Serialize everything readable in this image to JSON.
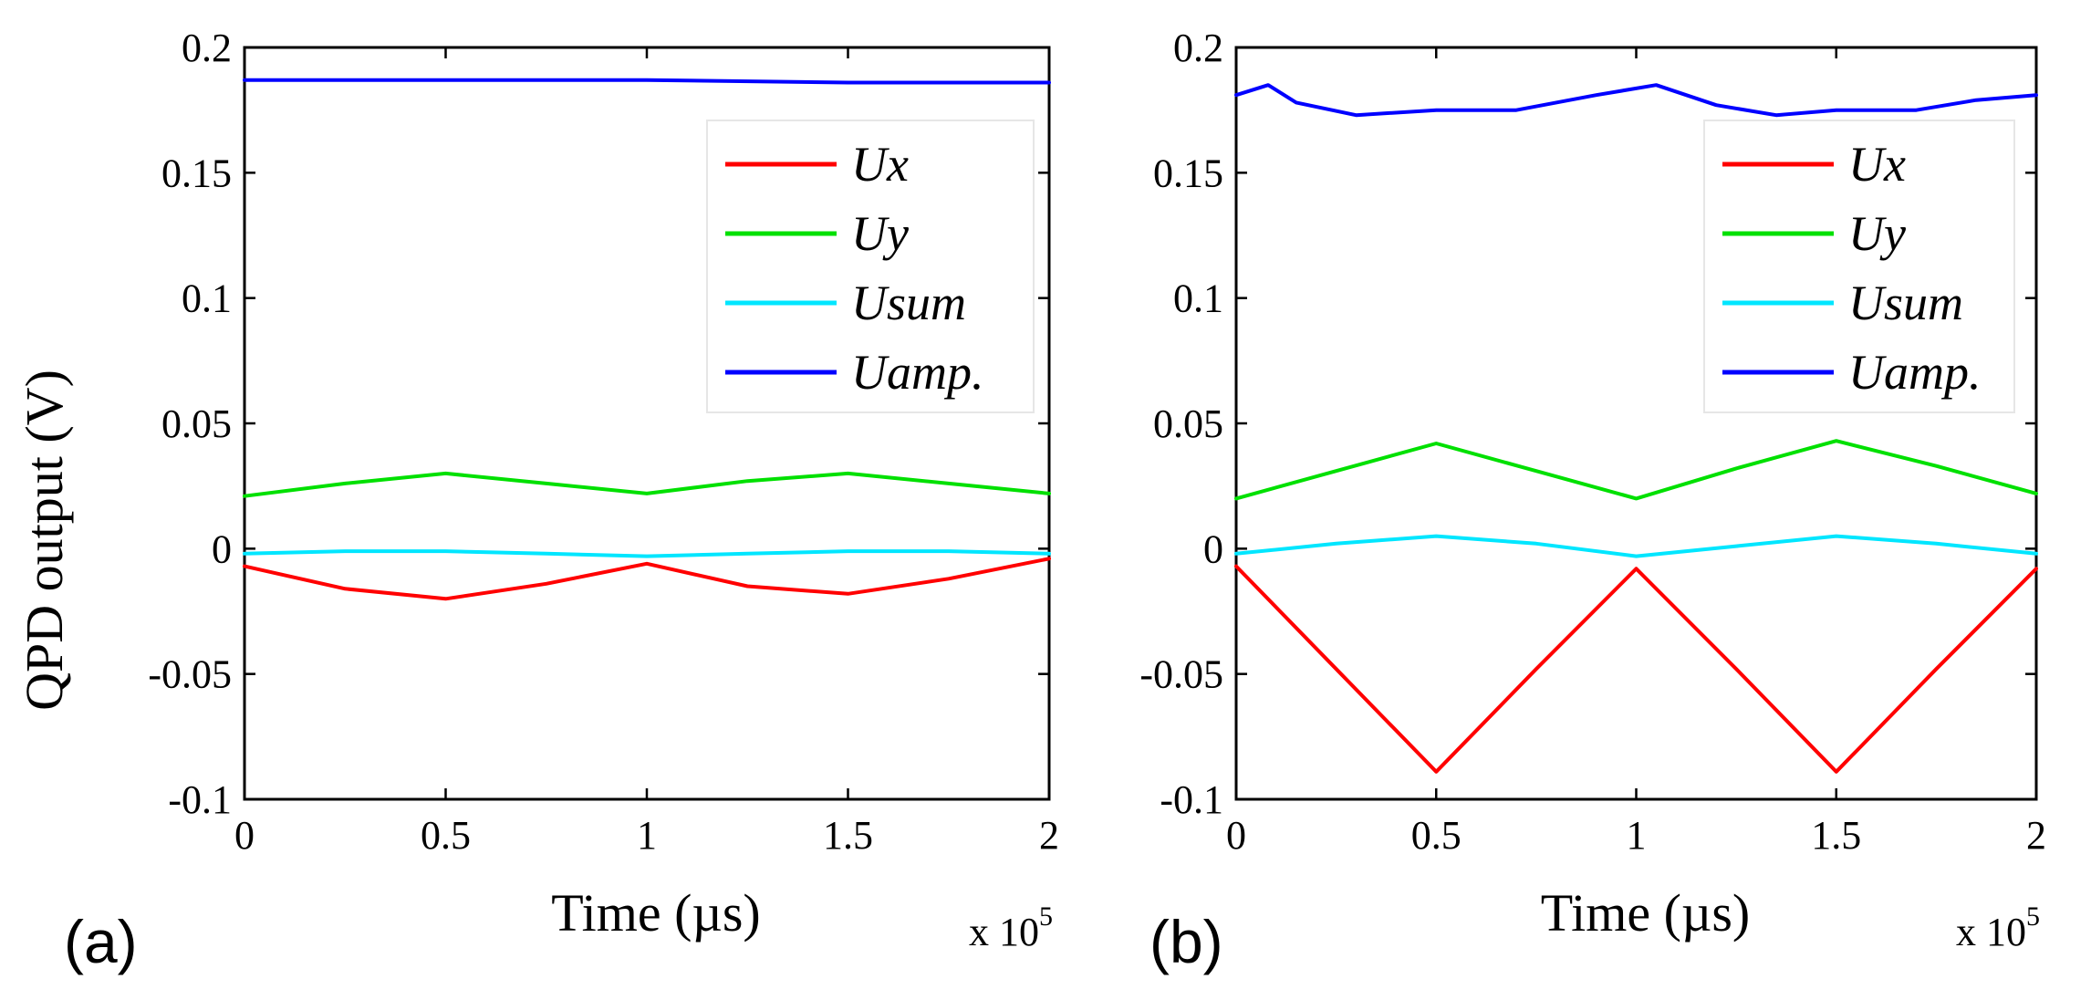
{
  "figure": {
    "ylabel": "QPD output (V)",
    "xlabel": "Time (µs)",
    "x_exponent_prefix": "x 10",
    "x_exponent_power": "5"
  },
  "chart_data": [
    {
      "type": "line",
      "panel_label": "(a)",
      "xlabel": "Time (µs)",
      "ylabel": "QPD output (V)",
      "x_multiplier": "x 10^5",
      "xlim": [
        0,
        2
      ],
      "ylim": [
        -0.1,
        0.2
      ],
      "x_ticks": [
        0,
        0.5,
        1,
        1.5,
        2
      ],
      "x_tick_labels": [
        "0",
        "0.5",
        "1",
        "1.5",
        "2"
      ],
      "y_ticks": [
        -0.1,
        -0.05,
        0,
        0.05,
        0.1,
        0.15,
        0.2
      ],
      "y_tick_labels": [
        "-0.1",
        "-0.05",
        "0",
        "0.05",
        "0.1",
        "0.15",
        "0.2"
      ],
      "legend_position": "top-right",
      "series": [
        {
          "name": "Ux",
          "color": "#ff0000",
          "x": [
            0,
            0.25,
            0.5,
            0.75,
            1,
            1.25,
            1.5,
            1.75,
            2
          ],
          "y": [
            -0.007,
            -0.016,
            -0.02,
            -0.014,
            -0.006,
            -0.015,
            -0.018,
            -0.012,
            -0.004
          ]
        },
        {
          "name": "Uy",
          "color": "#00e000",
          "x": [
            0,
            0.25,
            0.5,
            0.75,
            1,
            1.25,
            1.5,
            1.75,
            2
          ],
          "y": [
            0.021,
            0.026,
            0.03,
            0.026,
            0.022,
            0.027,
            0.03,
            0.026,
            0.022
          ]
        },
        {
          "name": "Usum",
          "color": "#00e6ff",
          "x": [
            0,
            0.25,
            0.5,
            0.75,
            1,
            1.25,
            1.5,
            1.75,
            2
          ],
          "y": [
            -0.002,
            -0.001,
            -0.001,
            -0.002,
            -0.003,
            -0.002,
            -0.001,
            -0.001,
            -0.002
          ]
        },
        {
          "name": "Uamp.",
          "color": "#0000ff",
          "x": [
            0,
            0.5,
            1,
            1.5,
            2
          ],
          "y": [
            0.187,
            0.187,
            0.187,
            0.186,
            0.186
          ]
        }
      ]
    },
    {
      "type": "line",
      "panel_label": "(b)",
      "xlabel": "Time (µs)",
      "ylabel": "",
      "x_multiplier": "x 10^5",
      "xlim": [
        0,
        2
      ],
      "ylim": [
        -0.1,
        0.2
      ],
      "x_ticks": [
        0,
        0.5,
        1,
        1.5,
        2
      ],
      "x_tick_labels": [
        "0",
        "0.5",
        "1",
        "1.5",
        "2"
      ],
      "y_ticks": [
        -0.1,
        -0.05,
        0,
        0.05,
        0.1,
        0.15,
        0.2
      ],
      "y_tick_labels": [
        "-0.1",
        "-0.05",
        "0",
        "0.05",
        "0.1",
        "0.15",
        "0.2"
      ],
      "legend_position": "top-right",
      "series": [
        {
          "name": "Ux",
          "color": "#ff0000",
          "x": [
            0,
            0.25,
            0.5,
            0.75,
            1,
            1.25,
            1.5,
            1.75,
            2
          ],
          "y": [
            -0.007,
            -0.048,
            -0.089,
            -0.048,
            -0.008,
            -0.048,
            -0.089,
            -0.048,
            -0.008
          ]
        },
        {
          "name": "Uy",
          "color": "#00e000",
          "x": [
            0,
            0.25,
            0.5,
            0.75,
            1,
            1.25,
            1.5,
            1.75,
            2
          ],
          "y": [
            0.02,
            0.031,
            0.042,
            0.031,
            0.02,
            0.032,
            0.043,
            0.033,
            0.022
          ]
        },
        {
          "name": "Usum",
          "color": "#00e6ff",
          "x": [
            0,
            0.25,
            0.5,
            0.75,
            1,
            1.25,
            1.5,
            1.75,
            2
          ],
          "y": [
            -0.002,
            0.002,
            0.005,
            0.002,
            -0.003,
            0.001,
            0.005,
            0.002,
            -0.002
          ]
        },
        {
          "name": "Uamp.",
          "color": "#0000ff",
          "x": [
            0,
            0.08,
            0.15,
            0.3,
            0.5,
            0.7,
            0.9,
            1.05,
            1.2,
            1.35,
            1.5,
            1.7,
            1.85,
            2
          ],
          "y": [
            0.181,
            0.185,
            0.178,
            0.173,
            0.175,
            0.175,
            0.181,
            0.185,
            0.177,
            0.173,
            0.175,
            0.175,
            0.179,
            0.181
          ]
        }
      ]
    }
  ]
}
